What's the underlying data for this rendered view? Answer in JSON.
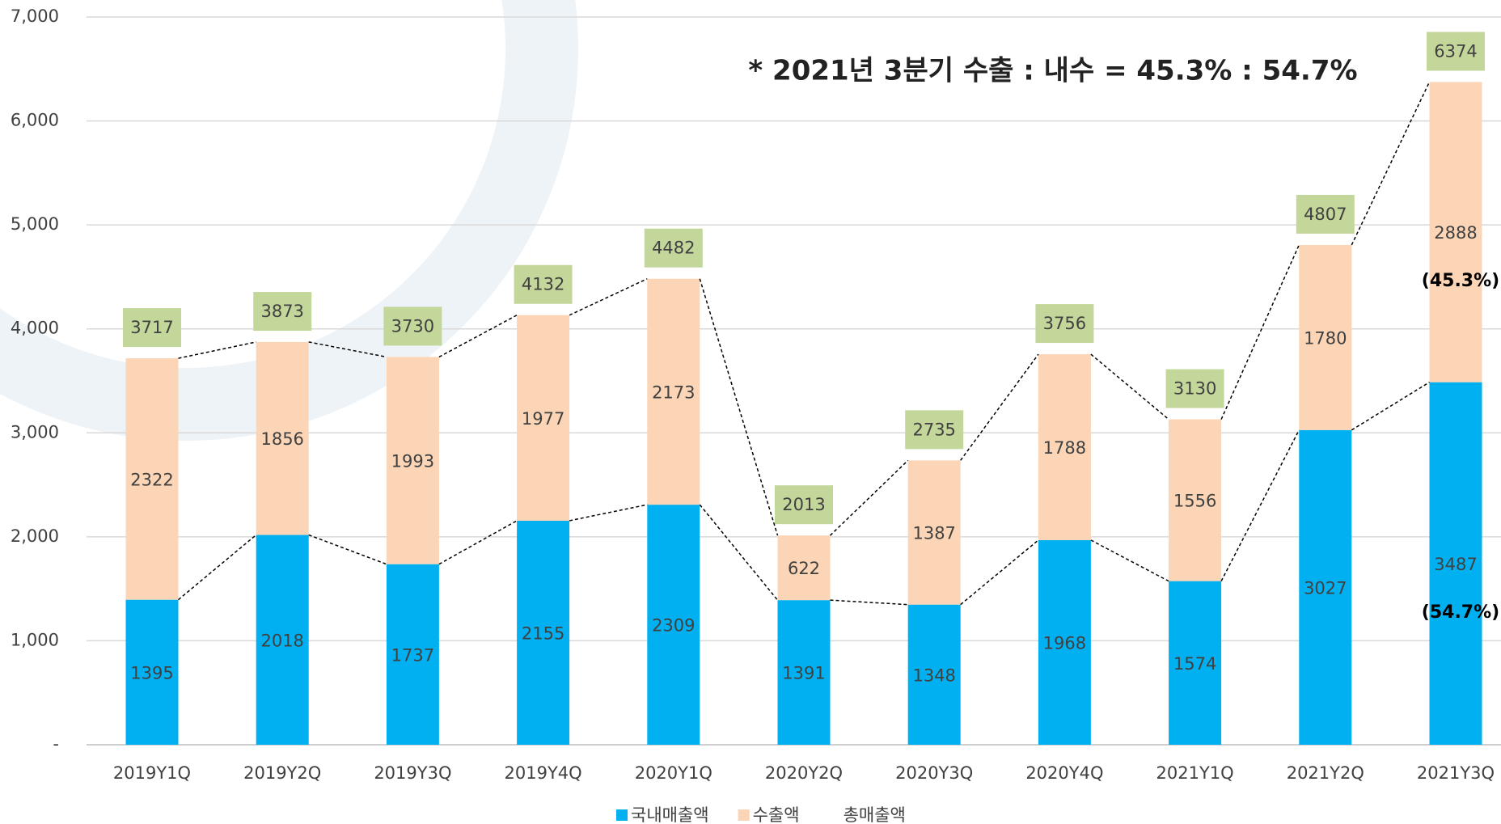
{
  "chart_data": {
    "type": "bar",
    "stacked": true,
    "annotation": "* 2021년 3분기 수출 : 내수 = 45.3% : 54.7%",
    "categories": [
      "2019Y1Q",
      "2019Y2Q",
      "2019Y3Q",
      "2019Y4Q",
      "2020Y1Q",
      "2020Y2Q",
      "2020Y3Q",
      "2020Y4Q",
      "2021Y1Q",
      "2021Y2Q",
      "2021Y3Q"
    ],
    "series": [
      {
        "name": "국내매출액",
        "color": "#00b0f0",
        "values": [
          1395,
          2018,
          1737,
          2155,
          2309,
          1391,
          1348,
          1968,
          1574,
          3027,
          3487
        ]
      },
      {
        "name": "수출액",
        "color": "#fbd5b5",
        "values": [
          2322,
          1856,
          1993,
          1977,
          2173,
          622,
          1387,
          1788,
          1556,
          1780,
          2888
        ]
      },
      {
        "name": "총매출액",
        "type": "line",
        "color": "#c4d79b",
        "values": [
          3717,
          3873,
          3730,
          4132,
          4482,
          2013,
          2735,
          3756,
          3130,
          4807,
          6374
        ]
      }
    ],
    "share_labels": [
      "(54.7%)",
      "(45.3%)"
    ],
    "ylim": [
      0,
      7000
    ],
    "yticks": [
      {
        "value": 0,
        "label": "-"
      },
      {
        "value": 1000,
        "label": "1,000"
      },
      {
        "value": 2000,
        "label": "2,000"
      },
      {
        "value": 3000,
        "label": "3,000"
      },
      {
        "value": 4000,
        "label": "4,000"
      },
      {
        "value": 5000,
        "label": "5,000"
      },
      {
        "value": 6000,
        "label": "6,000"
      },
      {
        "value": 7000,
        "label": "7,000"
      }
    ],
    "grid": true
  }
}
